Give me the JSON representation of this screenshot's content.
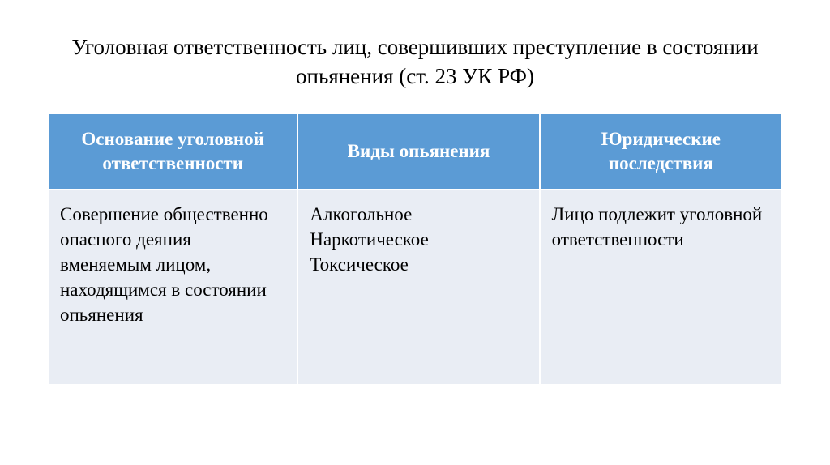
{
  "title": "Уголовная ответственность лиц, совершивших преступление в состоянии опьянения (ст. 23 УК РФ)",
  "table": {
    "headers": [
      "Основание уголовной ответственности",
      "Виды опьянения",
      "Юридические последствия"
    ],
    "row": {
      "basis": "Совершение общественно опасного деяния вменяемым лицом, находящимся в состоянии опьянения",
      "type1": "Алкогольное",
      "type2": "Наркотическое",
      "type3": "Токсическое",
      "consequence": "Лицо подлежит уголовной ответственности"
    }
  },
  "colors": {
    "header_bg": "#5b9bd5",
    "header_text": "#ffffff",
    "cell_bg": "#e9edf4",
    "cell_text": "#000000",
    "border": "#ffffff"
  },
  "typography": {
    "title_fontsize": 27,
    "header_fontsize": 23,
    "cell_fontsize": 23,
    "font_family": "Times New Roman"
  }
}
